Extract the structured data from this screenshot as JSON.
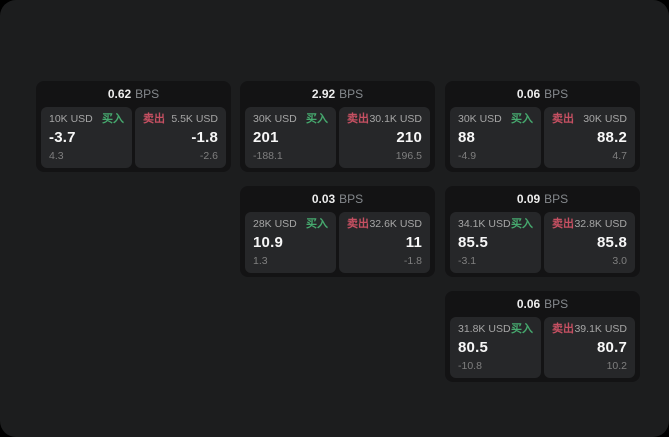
{
  "labels": {
    "bps_unit": "BPS",
    "buy": "买入",
    "sell": "卖出"
  },
  "colors": {
    "background": "#000000",
    "page": "#1c1d1e",
    "card": "#131314",
    "panel": "#262729",
    "buy_accent": "#46a96e",
    "sell_accent": "#c65062",
    "value_text": "#f7f7f7",
    "muted_text": "#7f7f7f"
  },
  "cards": [
    {
      "bps": "0.62",
      "buy": {
        "amount": "10K USD",
        "value": "-3.7",
        "delta": "4.3"
      },
      "sell": {
        "amount": "5.5K USD",
        "value": "-1.8",
        "delta": "-2.6"
      }
    },
    {
      "bps": "2.92",
      "buy": {
        "amount": "30K USD",
        "value": "201",
        "delta": "-188.1"
      },
      "sell": {
        "amount": "30.1K USD",
        "value": "210",
        "delta": "196.5"
      }
    },
    {
      "bps": "0.06",
      "buy": {
        "amount": "30K USD",
        "value": "88",
        "delta": "-4.9"
      },
      "sell": {
        "amount": "30K USD",
        "value": "88.2",
        "delta": "4.7"
      }
    },
    {
      "bps": "0.03",
      "buy": {
        "amount": "28K USD",
        "value": "10.9",
        "delta": "1.3"
      },
      "sell": {
        "amount": "32.6K USD",
        "value": "11",
        "delta": "-1.8"
      }
    },
    {
      "bps": "0.09",
      "buy": {
        "amount": "34.1K USD",
        "value": "85.5",
        "delta": "-3.1"
      },
      "sell": {
        "amount": "32.8K USD",
        "value": "85.8",
        "delta": "3.0"
      }
    },
    {
      "bps": "0.06",
      "buy": {
        "amount": "31.8K USD",
        "value": "80.5",
        "delta": "-10.8"
      },
      "sell": {
        "amount": "39.1K USD",
        "value": "80.7",
        "delta": "10.2"
      }
    }
  ]
}
